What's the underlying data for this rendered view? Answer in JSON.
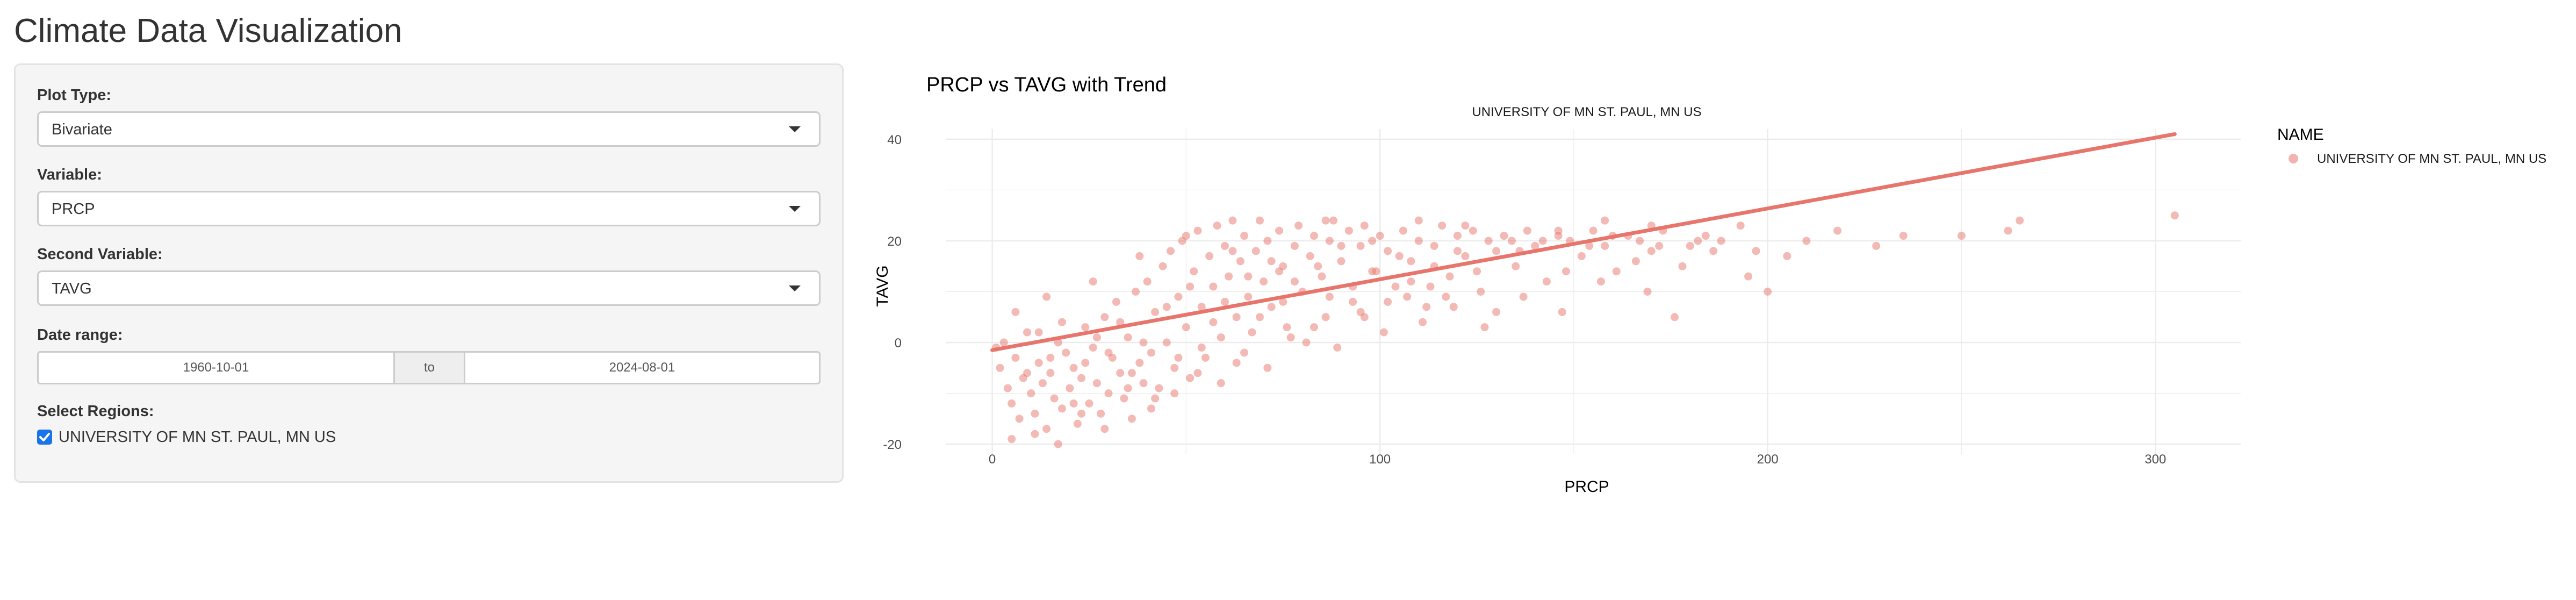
{
  "app": {
    "title": "Climate Data Visualization"
  },
  "controls": {
    "plot_type": {
      "label": "Plot Type:",
      "value": "Bivariate"
    },
    "variable": {
      "label": "Variable:",
      "value": "PRCP"
    },
    "second_variable": {
      "label": "Second Variable:",
      "value": "TAVG"
    },
    "date_range": {
      "label": "Date range:",
      "start": "1960-10-01",
      "separator": "to",
      "end": "2024-08-01"
    },
    "regions": {
      "label": "Select Regions:",
      "items": [
        {
          "label": "UNIVERSITY OF MN ST. PAUL, MN US",
          "checked": true
        }
      ]
    }
  },
  "colors": {
    "points": "#e8756b",
    "trend": "#e8756b",
    "grid": "#ebebeb"
  },
  "chart_data": {
    "type": "scatter",
    "title": "PRCP vs TAVG with Trend",
    "subtitle": "UNIVERSITY OF MN ST. PAUL, MN US",
    "xlabel": "PRCP",
    "ylabel": "TAVG",
    "xlim": [
      -12,
      322
    ],
    "ylim": [
      -22,
      42
    ],
    "x_ticks": [
      0,
      100,
      200,
      300
    ],
    "y_ticks": [
      -20,
      0,
      20,
      40
    ],
    "grid": true,
    "legend": {
      "title": "NAME",
      "position": "right",
      "entries": [
        "UNIVERSITY OF MN ST. PAUL, MN US"
      ]
    },
    "trend_line": {
      "x": [
        0,
        305
      ],
      "y": [
        -1.5,
        41
      ]
    },
    "series": [
      {
        "name": "UNIVERSITY OF MN ST. PAUL, MN US",
        "points": [
          [
            2,
            -5
          ],
          [
            4,
            -9
          ],
          [
            5,
            -12
          ],
          [
            6,
            -3
          ],
          [
            7,
            -15
          ],
          [
            8,
            -7
          ],
          [
            9,
            2
          ],
          [
            10,
            -10
          ],
          [
            11,
            -14
          ],
          [
            12,
            -4
          ],
          [
            13,
            -8
          ],
          [
            14,
            -17
          ],
          [
            15,
            -6
          ],
          [
            16,
            -11
          ],
          [
            17,
            0
          ],
          [
            18,
            -13
          ],
          [
            19,
            -2
          ],
          [
            20,
            -9
          ],
          [
            21,
            -5
          ],
          [
            22,
            -16
          ],
          [
            23,
            -7
          ],
          [
            24,
            3
          ],
          [
            25,
            -12
          ],
          [
            26,
            -1
          ],
          [
            27,
            -8
          ],
          [
            28,
            -14
          ],
          [
            29,
            5
          ],
          [
            30,
            -10
          ],
          [
            31,
            -3
          ],
          [
            32,
            8
          ],
          [
            33,
            -6
          ],
          [
            34,
            -11
          ],
          [
            35,
            1
          ],
          [
            36,
            -15
          ],
          [
            37,
            10
          ],
          [
            38,
            -4
          ],
          [
            39,
            -8
          ],
          [
            40,
            12
          ],
          [
            41,
            -2
          ],
          [
            42,
            6
          ],
          [
            43,
            -9
          ],
          [
            44,
            15
          ],
          [
            45,
            0
          ],
          [
            46,
            18
          ],
          [
            47,
            -5
          ],
          [
            48,
            9
          ],
          [
            49,
            20
          ],
          [
            50,
            3
          ],
          [
            51,
            -7
          ],
          [
            52,
            14
          ],
          [
            53,
            22
          ],
          [
            54,
            7
          ],
          [
            55,
            -3
          ],
          [
            56,
            17
          ],
          [
            57,
            11
          ],
          [
            58,
            23
          ],
          [
            59,
            1
          ],
          [
            60,
            19
          ],
          [
            61,
            13
          ],
          [
            62,
            24
          ],
          [
            63,
            5
          ],
          [
            64,
            16
          ],
          [
            65,
            21
          ],
          [
            66,
            9
          ],
          [
            67,
            2
          ],
          [
            68,
            18
          ],
          [
            69,
            24
          ],
          [
            70,
            12
          ],
          [
            71,
            20
          ],
          [
            72,
            7
          ],
          [
            74,
            22
          ],
          [
            75,
            15
          ],
          [
            76,
            3
          ],
          [
            78,
            19
          ],
          [
            79,
            23
          ],
          [
            80,
            10
          ],
          [
            82,
            17
          ],
          [
            83,
            21
          ],
          [
            85,
            13
          ],
          [
            86,
            5
          ],
          [
            87,
            20
          ],
          [
            88,
            24
          ],
          [
            90,
            16
          ],
          [
            92,
            22
          ],
          [
            93,
            8
          ],
          [
            95,
            19
          ],
          [
            96,
            23
          ],
          [
            98,
            14
          ],
          [
            100,
            21
          ],
          [
            102,
            18
          ],
          [
            104,
            11
          ],
          [
            106,
            22
          ],
          [
            108,
            16
          ],
          [
            110,
            20
          ],
          [
            112,
            7
          ],
          [
            114,
            19
          ],
          [
            116,
            23
          ],
          [
            118,
            13
          ],
          [
            120,
            21
          ],
          [
            122,
            17
          ],
          [
            124,
            22
          ],
          [
            126,
            10
          ],
          [
            128,
            20
          ],
          [
            130,
            18
          ],
          [
            132,
            21
          ],
          [
            135,
            15
          ],
          [
            138,
            22
          ],
          [
            140,
            19
          ],
          [
            143,
            12
          ],
          [
            146,
            21
          ],
          [
            149,
            20
          ],
          [
            152,
            17
          ],
          [
            155,
            22
          ],
          [
            158,
            19
          ],
          [
            161,
            14
          ],
          [
            164,
            21
          ],
          [
            167,
            20
          ],
          [
            170,
            18
          ],
          [
            173,
            22
          ],
          [
            176,
            5
          ],
          [
            180,
            19
          ],
          [
            184,
            21
          ],
          [
            188,
            20
          ],
          [
            193,
            23
          ],
          [
            197,
            18
          ],
          [
            200,
            10
          ],
          [
            205,
            17
          ],
          [
            210,
            20
          ],
          [
            218,
            22
          ],
          [
            228,
            19
          ],
          [
            235,
            21
          ],
          [
            250,
            21
          ],
          [
            262,
            22
          ],
          [
            265,
            24
          ],
          [
            305,
            25
          ],
          [
            3,
            0
          ],
          [
            6,
            6
          ],
          [
            9,
            -6
          ],
          [
            12,
            2
          ],
          [
            15,
            -3
          ],
          [
            18,
            4
          ],
          [
            21,
            -12
          ],
          [
            24,
            -4
          ],
          [
            27,
            1
          ],
          [
            30,
            -2
          ],
          [
            33,
            4
          ],
          [
            36,
            -6
          ],
          [
            39,
            0
          ],
          [
            42,
            -11
          ],
          [
            45,
            7
          ],
          [
            48,
            -3
          ],
          [
            51,
            11
          ],
          [
            54,
            -1
          ],
          [
            57,
            4
          ],
          [
            60,
            8
          ],
          [
            63,
            -4
          ],
          [
            66,
            13
          ],
          [
            69,
            5
          ],
          [
            72,
            16
          ],
          [
            75,
            8
          ],
          [
            78,
            12
          ],
          [
            81,
            0
          ],
          [
            84,
            15
          ],
          [
            87,
            9
          ],
          [
            90,
            19
          ],
          [
            93,
            11
          ],
          [
            96,
            5
          ],
          [
            99,
            14
          ],
          [
            102,
            8
          ],
          [
            105,
            17
          ],
          [
            108,
            12
          ],
          [
            111,
            4
          ],
          [
            114,
            15
          ],
          [
            117,
            9
          ],
          [
            120,
            18
          ],
          [
            125,
            14
          ],
          [
            130,
            6
          ],
          [
            136,
            18
          ],
          [
            142,
            20
          ],
          [
            148,
            14
          ],
          [
            154,
            19
          ],
          [
            160,
            21
          ],
          [
            166,
            16
          ],
          [
            172,
            19
          ],
          [
            178,
            15
          ],
          [
            186,
            18
          ],
          [
            195,
            13
          ],
          [
            1,
            -1
          ],
          [
            14,
            9
          ],
          [
            26,
            12
          ],
          [
            38,
            17
          ],
          [
            50,
            21
          ],
          [
            62,
            18
          ],
          [
            74,
            14
          ],
          [
            86,
            24
          ],
          [
            98,
            20
          ],
          [
            110,
            24
          ],
          [
            122,
            23
          ],
          [
            134,
            20
          ],
          [
            146,
            22
          ],
          [
            158,
            24
          ],
          [
            170,
            23
          ],
          [
            182,
            20
          ],
          [
            5,
            -19
          ],
          [
            11,
            -18
          ],
          [
            17,
            -20
          ],
          [
            23,
            -14
          ],
          [
            29,
            -17
          ],
          [
            35,
            -9
          ],
          [
            41,
            -13
          ],
          [
            47,
            -10
          ],
          [
            53,
            -6
          ],
          [
            59,
            -8
          ],
          [
            65,
            -2
          ],
          [
            71,
            -5
          ],
          [
            77,
            1
          ],
          [
            83,
            3
          ],
          [
            89,
            -1
          ],
          [
            95,
            6
          ],
          [
            101,
            2
          ],
          [
            107,
            9
          ],
          [
            113,
            11
          ],
          [
            119,
            7
          ],
          [
            127,
            3
          ],
          [
            137,
            9
          ],
          [
            147,
            6
          ],
          [
            157,
            12
          ],
          [
            169,
            10
          ]
        ]
      }
    ]
  }
}
